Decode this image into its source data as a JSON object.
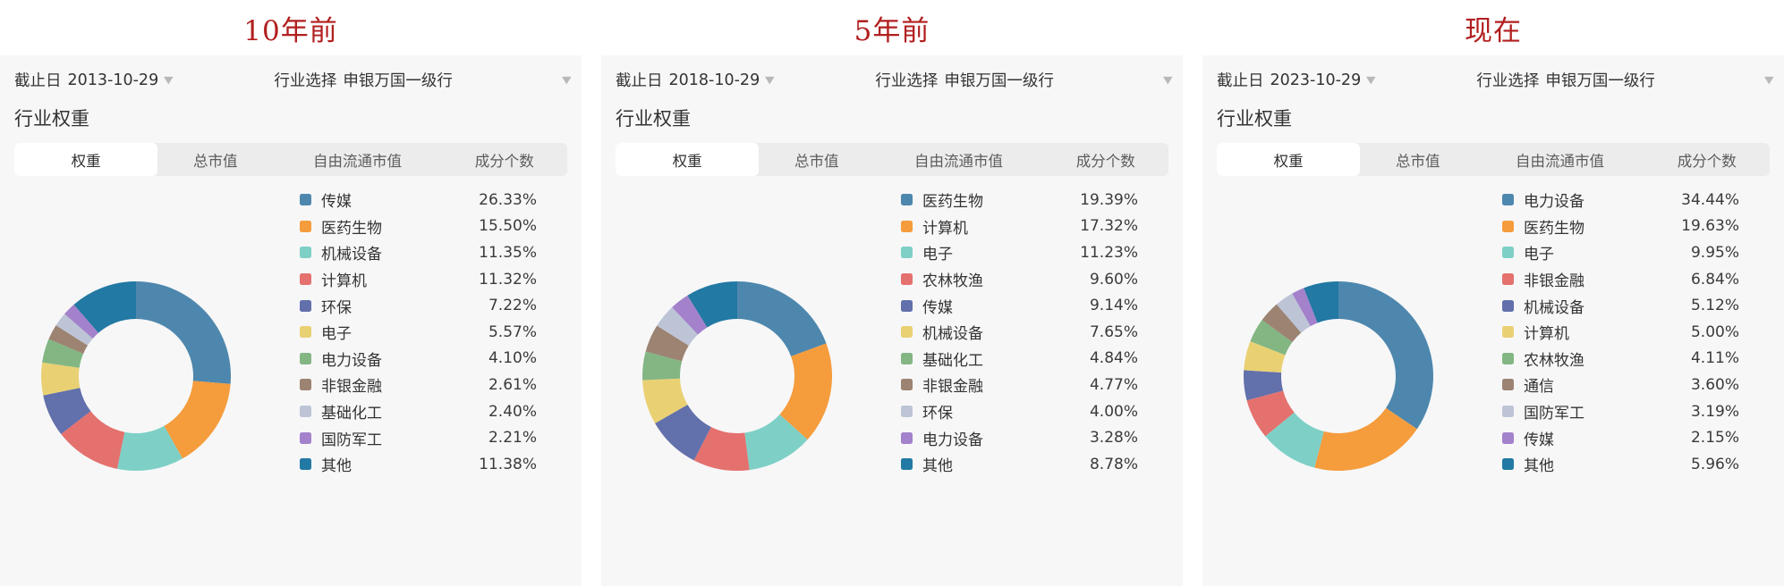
{
  "colors": {
    "title_red": "#b21f1f",
    "panel_bg": "#f7f7f8",
    "tabbar_bg": "#ececec",
    "active_tab_bg": "#ffffff",
    "text_primary": "#333333",
    "text_secondary": "#5c5c5c",
    "caret_gray": "#b8b8b8",
    "palette": [
      "#4e87ad",
      "#f59c3c",
      "#7ed0c6",
      "#e4716e",
      "#6270ab",
      "#e9d173",
      "#83b683",
      "#9c8372",
      "#bdc4d6",
      "#a381cb",
      "#2279a3"
    ]
  },
  "tabs": [
    {
      "key": "weight",
      "label": "权重",
      "active": true
    },
    {
      "key": "total-market-cap",
      "label": "总市值",
      "active": false
    },
    {
      "key": "free-float-market-cap",
      "label": "自由流通市值",
      "active": false
    },
    {
      "key": "constituent-count",
      "label": "成分个数",
      "active": false
    }
  ],
  "panels": [
    {
      "title": "10年前",
      "date_prefix": "截止日",
      "date": "2013-10-29",
      "industry_prefix": "行业选择",
      "industry": "申银万国一级行",
      "section_title": "行业权重"
    },
    {
      "title": "5年前",
      "date_prefix": "截止日",
      "date": "2018-10-29",
      "industry_prefix": "行业选择",
      "industry": "申银万国一级行",
      "section_title": "行业权重"
    },
    {
      "title": "现在",
      "date_prefix": "截止日",
      "date": "2023-10-29",
      "industry_prefix": "行业选择",
      "industry": "申银万国一级行",
      "section_title": "行业权重"
    }
  ],
  "chart_data": [
    {
      "type": "pie",
      "donut": true,
      "title": "行业权重 (截止日 2013-10-29)",
      "legend_position": "right",
      "categories": [
        "传媒",
        "医药生物",
        "机械设备",
        "计算机",
        "环保",
        "电子",
        "电力设备",
        "非银金融",
        "基础化工",
        "国防军工",
        "其他"
      ],
      "values": [
        26.33,
        15.5,
        11.35,
        11.32,
        7.22,
        5.57,
        4.1,
        2.61,
        2.4,
        2.21,
        11.38
      ]
    },
    {
      "type": "pie",
      "donut": true,
      "title": "行业权重 (截止日 2018-10-29)",
      "legend_position": "right",
      "categories": [
        "医药生物",
        "计算机",
        "电子",
        "农林牧渔",
        "传媒",
        "机械设备",
        "基础化工",
        "非银金融",
        "环保",
        "电力设备",
        "其他"
      ],
      "values": [
        19.39,
        17.32,
        11.23,
        9.6,
        9.14,
        7.65,
        4.84,
        4.77,
        4.0,
        3.28,
        8.78
      ]
    },
    {
      "type": "pie",
      "donut": true,
      "title": "行业权重 (截止日 2023-10-29)",
      "legend_position": "right",
      "categories": [
        "电力设备",
        "医药生物",
        "电子",
        "非银金融",
        "机械设备",
        "计算机",
        "农林牧渔",
        "通信",
        "国防军工",
        "传媒",
        "其他"
      ],
      "values": [
        34.44,
        19.63,
        9.95,
        6.84,
        5.12,
        5.0,
        4.11,
        3.6,
        3.19,
        2.15,
        5.96
      ]
    }
  ]
}
